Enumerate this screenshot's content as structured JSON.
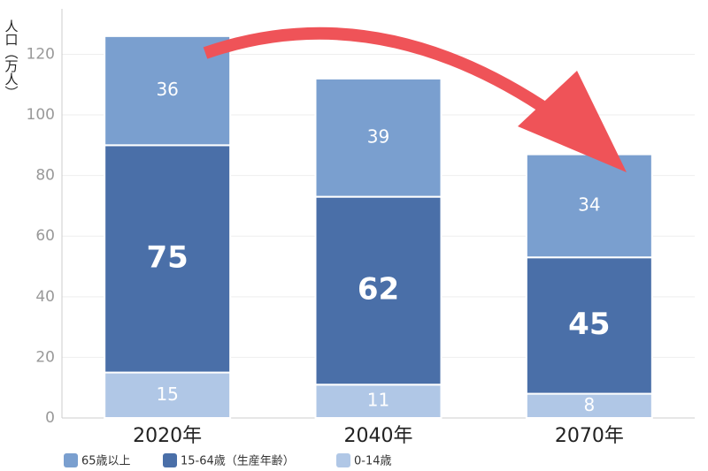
{
  "chart_data": {
    "type": "stacked_bar",
    "y_label": "人口（万人）",
    "categories": [
      "2020年",
      "2040年",
      "2070年"
    ],
    "series": [
      {
        "name": "0-14歳",
        "color": "#b0c7e6",
        "values": [
          15,
          11,
          8
        ]
      },
      {
        "name": "15-64歳（生産年齢）",
        "color": "#4a6fa8",
        "values": [
          75,
          62,
          45
        ]
      },
      {
        "name": "65歳以上",
        "color": "#7a9fcf",
        "values": [
          36,
          39,
          34
        ]
      }
    ],
    "ylim": [
      0,
      135
    ],
    "yticks": [
      0,
      20,
      40,
      60,
      80,
      100,
      120
    ],
    "grid": true
  }
}
